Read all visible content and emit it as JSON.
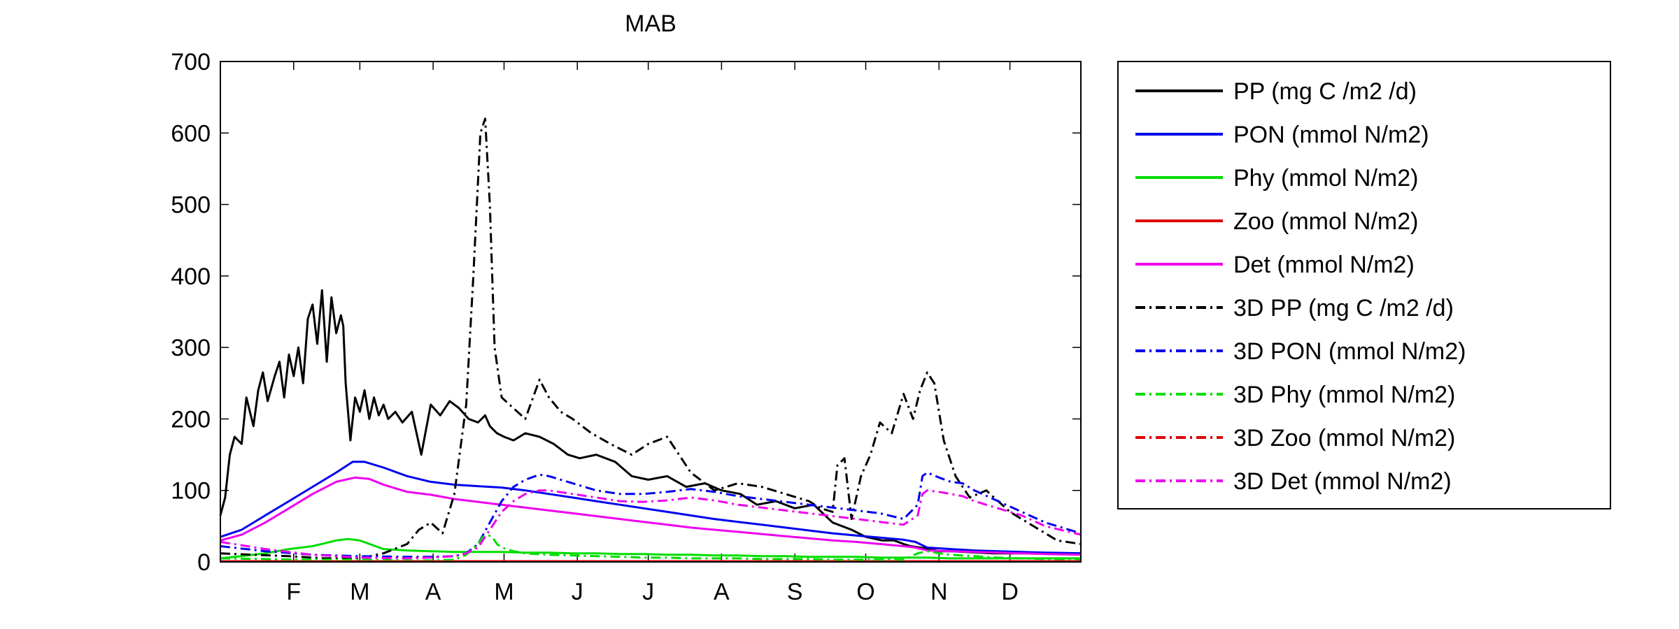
{
  "chart_data": {
    "type": "line",
    "title": "MAB",
    "xlabel": "",
    "ylabel": "",
    "ylim": [
      0,
      700
    ],
    "yticks": [
      0,
      100,
      200,
      300,
      400,
      500,
      600,
      700
    ],
    "xlim": [
      1,
      365
    ],
    "xticks": [
      {
        "label": "F",
        "day": 32
      },
      {
        "label": "M",
        "day": 60
      },
      {
        "label": "A",
        "day": 91
      },
      {
        "label": "M",
        "day": 121
      },
      {
        "label": "J",
        "day": 152
      },
      {
        "label": "J",
        "day": 182
      },
      {
        "label": "A",
        "day": 213
      },
      {
        "label": "S",
        "day": 244
      },
      {
        "label": "O",
        "day": 274
      },
      {
        "label": "N",
        "day": 305
      },
      {
        "label": "D",
        "day": 335
      }
    ],
    "grid": false,
    "legend_position": "outside-right",
    "series": [
      {
        "name": "PP (mg C /m2 /d)",
        "color": "#000000",
        "style": "solid",
        "x": [
          1,
          3,
          5,
          7,
          10,
          12,
          15,
          17,
          19,
          21,
          24,
          26,
          28,
          30,
          32,
          34,
          36,
          38,
          40,
          42,
          44,
          46,
          48,
          50,
          52,
          53,
          54,
          56,
          57,
          58,
          60,
          62,
          64,
          66,
          68,
          70,
          72,
          75,
          78,
          82,
          86,
          90,
          94,
          98,
          102,
          106,
          110,
          113,
          115,
          118,
          121,
          125,
          130,
          136,
          142,
          148,
          153,
          160,
          168,
          175,
          182,
          190,
          198,
          206,
          213,
          221,
          228,
          236,
          244,
          252,
          260,
          268,
          274,
          281,
          286,
          290,
          293,
          297,
          301,
          305,
          310,
          316,
          322,
          328,
          335,
          342,
          350,
          358,
          365
        ],
        "y": [
          65,
          90,
          150,
          175,
          165,
          230,
          190,
          240,
          265,
          225,
          260,
          280,
          230,
          290,
          260,
          300,
          250,
          340,
          360,
          305,
          380,
          280,
          370,
          320,
          345,
          330,
          250,
          170,
          200,
          230,
          210,
          240,
          200,
          230,
          205,
          220,
          200,
          210,
          195,
          210,
          150,
          220,
          205,
          225,
          215,
          200,
          195,
          205,
          190,
          180,
          175,
          170,
          180,
          175,
          165,
          150,
          145,
          150,
          140,
          120,
          115,
          120,
          105,
          110,
          100,
          95,
          80,
          85,
          75,
          80,
          55,
          45,
          35,
          30,
          30,
          25,
          22,
          20,
          18,
          15,
          15,
          14,
          13,
          12,
          12,
          12,
          12,
          12,
          12
        ]
      },
      {
        "name": "PON (mmol N/m2)",
        "color": "#0000ee",
        "style": "solid",
        "x": [
          1,
          10,
          20,
          30,
          40,
          50,
          57,
          62,
          70,
          80,
          90,
          100,
          110,
          120,
          130,
          140,
          150,
          160,
          170,
          180,
          190,
          200,
          210,
          220,
          230,
          240,
          250,
          260,
          270,
          280,
          290,
          295,
          300,
          310,
          320,
          330,
          340,
          350,
          365
        ],
        "y": [
          35,
          45,
          65,
          85,
          105,
          125,
          140,
          140,
          132,
          120,
          112,
          108,
          106,
          104,
          100,
          95,
          90,
          85,
          80,
          75,
          70,
          65,
          60,
          56,
          52,
          48,
          44,
          40,
          37,
          34,
          31,
          28,
          20,
          18,
          16,
          15,
          14,
          13,
          12
        ]
      },
      {
        "name": "Phy (mmol N/m2)",
        "color": "#00dd00",
        "style": "solid",
        "x": [
          1,
          10,
          20,
          30,
          40,
          45,
          50,
          55,
          60,
          65,
          70,
          80,
          90,
          100,
          110,
          120,
          130,
          140,
          150,
          160,
          170,
          180,
          190,
          200,
          210,
          220,
          230,
          240,
          250,
          260,
          270,
          280,
          290,
          300,
          310,
          320,
          330,
          340,
          350,
          365
        ],
        "y": [
          5,
          8,
          12,
          18,
          22,
          26,
          30,
          32,
          30,
          24,
          18,
          16,
          15,
          14,
          14,
          14,
          13,
          13,
          12,
          12,
          11,
          11,
          10,
          10,
          9,
          9,
          8,
          8,
          7,
          7,
          7,
          6,
          6,
          6,
          5,
          5,
          5,
          5,
          5,
          5
        ]
      },
      {
        "name": "Zoo (mmol N/m2)",
        "color": "#dd0000",
        "style": "solid",
        "x": [
          1,
          60,
          120,
          180,
          240,
          300,
          365
        ],
        "y": [
          1,
          1,
          1,
          1,
          1,
          1,
          1
        ]
      },
      {
        "name": "Det (mmol N/m2)",
        "color": "#ee00ee",
        "style": "solid",
        "x": [
          1,
          10,
          20,
          30,
          40,
          50,
          58,
          64,
          70,
          80,
          90,
          100,
          110,
          120,
          130,
          140,
          150,
          160,
          170,
          180,
          190,
          200,
          210,
          220,
          230,
          240,
          250,
          260,
          270,
          280,
          290,
          295,
          300,
          310,
          320,
          330,
          340,
          350,
          365
        ],
        "y": [
          30,
          38,
          55,
          75,
          95,
          112,
          118,
          116,
          108,
          98,
          94,
          88,
          84,
          80,
          76,
          72,
          68,
          64,
          60,
          56,
          52,
          48,
          45,
          42,
          39,
          36,
          33,
          30,
          28,
          25,
          22,
          20,
          16,
          15,
          14,
          13,
          12,
          11,
          10
        ]
      },
      {
        "name": "3D PP (mg C /m2 /d)",
        "color": "#000000",
        "style": "dashdot",
        "x": [
          1,
          15,
          30,
          45,
          60,
          70,
          80,
          85,
          90,
          95,
          100,
          105,
          108,
          111,
          113,
          115,
          117,
          120,
          125,
          130,
          136,
          140,
          145,
          150,
          158,
          166,
          175,
          182,
          190,
          200,
          210,
          220,
          230,
          240,
          250,
          255,
          260,
          262,
          265,
          268,
          272,
          276,
          280,
          285,
          290,
          294,
          297,
          300,
          303,
          307,
          312,
          318,
          325,
          335,
          345,
          355,
          365
        ],
        "y": [
          12,
          10,
          8,
          5,
          5,
          12,
          25,
          45,
          55,
          40,
          95,
          220,
          400,
          600,
          620,
          500,
          300,
          230,
          215,
          200,
          255,
          230,
          210,
          200,
          180,
          165,
          150,
          165,
          175,
          125,
          100,
          110,
          105,
          95,
          85,
          75,
          70,
          135,
          145,
          60,
          120,
          150,
          195,
          180,
          235,
          200,
          240,
          265,
          250,
          170,
          120,
          90,
          100,
          70,
          50,
          30,
          25
        ]
      },
      {
        "name": "3D PON (mmol N/m2)",
        "color": "#0000ee",
        "style": "dashdot",
        "x": [
          1,
          20,
          40,
          60,
          80,
          90,
          100,
          105,
          110,
          115,
          120,
          125,
          130,
          136,
          140,
          150,
          160,
          170,
          180,
          190,
          200,
          210,
          220,
          230,
          240,
          250,
          260,
          270,
          280,
          290,
          296,
          298,
          300,
          305,
          310,
          315,
          320,
          330,
          340,
          350,
          365
        ],
        "y": [
          22,
          15,
          10,
          8,
          7,
          7,
          8,
          12,
          25,
          55,
          85,
          105,
          115,
          122,
          120,
          110,
          100,
          95,
          95,
          98,
          102,
          98,
          92,
          88,
          84,
          80,
          76,
          72,
          68,
          60,
          80,
          120,
          125,
          118,
          112,
          110,
          100,
          85,
          70,
          55,
          40
        ]
      },
      {
        "name": "3D Phy (mmol N/m2)",
        "color": "#00dd00",
        "style": "dashdot",
        "x": [
          1,
          20,
          40,
          60,
          80,
          90,
          100,
          105,
          110,
          112,
          114,
          116,
          118,
          120,
          125,
          130,
          140,
          150,
          160,
          170,
          180,
          190,
          200,
          210,
          220,
          230,
          240,
          250,
          260,
          270,
          280,
          290,
          296,
          300,
          305,
          310,
          320,
          330,
          340,
          350,
          365
        ],
        "y": [
          5,
          4,
          3,
          3,
          2,
          2,
          3,
          10,
          25,
          35,
          38,
          35,
          25,
          20,
          15,
          12,
          10,
          9,
          8,
          7,
          6,
          6,
          5,
          5,
          5,
          4,
          4,
          4,
          3,
          3,
          3,
          3,
          12,
          15,
          12,
          10,
          8,
          6,
          5,
          4,
          4
        ]
      },
      {
        "name": "3D Zoo (mmol N/m2)",
        "color": "#dd0000",
        "style": "dashdot",
        "x": [
          1,
          60,
          120,
          180,
          240,
          300,
          365
        ],
        "y": [
          0.5,
          0.5,
          0.5,
          0.5,
          0.5,
          0.5,
          0.5
        ]
      },
      {
        "name": "3D Det (mmol N/m2)",
        "color": "#ee00ee",
        "style": "dashdot",
        "x": [
          1,
          20,
          40,
          60,
          80,
          90,
          100,
          105,
          110,
          115,
          120,
          125,
          130,
          136,
          140,
          150,
          160,
          170,
          180,
          190,
          200,
          210,
          220,
          230,
          240,
          250,
          260,
          270,
          280,
          290,
          296,
          298,
          300,
          305,
          310,
          315,
          320,
          330,
          340,
          350,
          365
        ],
        "y": [
          28,
          18,
          10,
          6,
          5,
          6,
          8,
          12,
          20,
          45,
          70,
          85,
          95,
          100,
          100,
          95,
          90,
          85,
          84,
          86,
          90,
          86,
          80,
          76,
          72,
          68,
          64,
          60,
          56,
          52,
          65,
          95,
          100,
          98,
          95,
          92,
          85,
          75,
          65,
          50,
          38
        ]
      }
    ]
  }
}
